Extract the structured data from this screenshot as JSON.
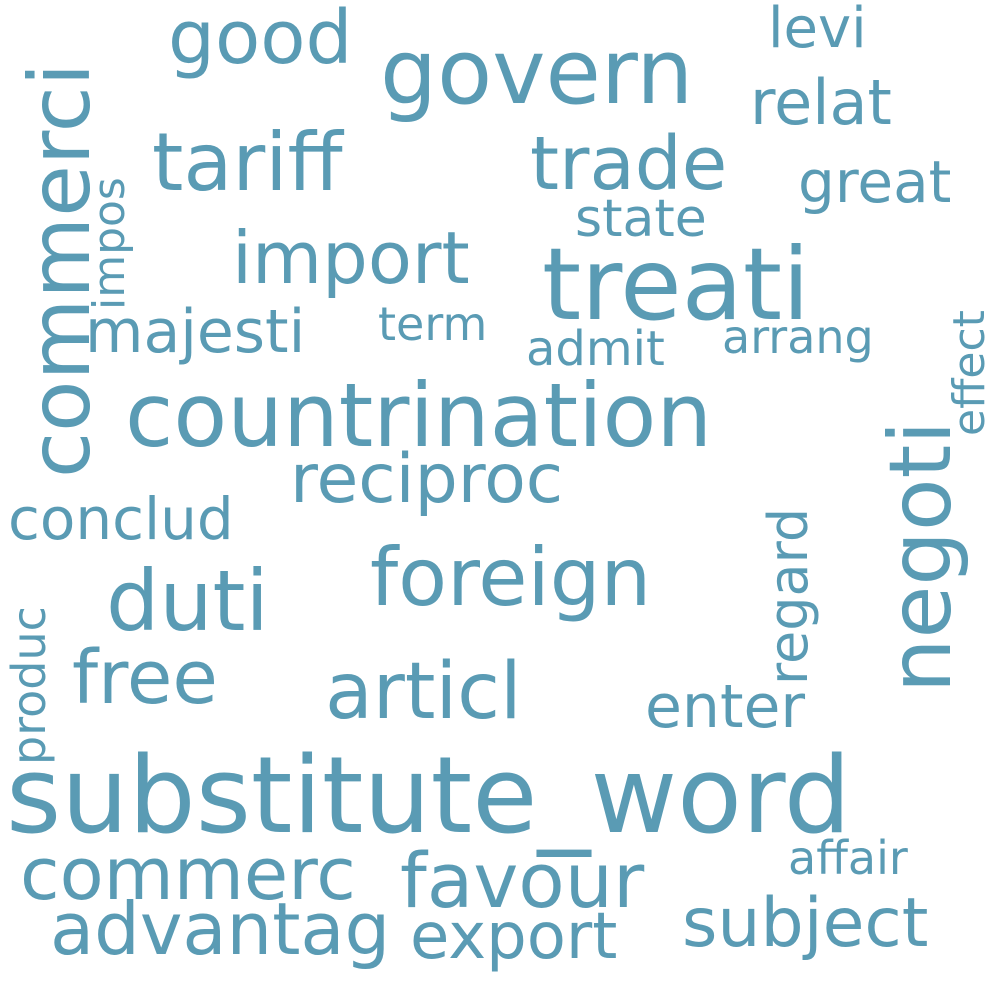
{
  "color": "#5a9bb4",
  "words": [
    "substitute_word",
    "countrination",
    "treati",
    "govern",
    "commerci",
    "tariff",
    "trade",
    "negoti",
    "good",
    "import",
    "foreign",
    "duti",
    "reciproc",
    "articl",
    "free",
    "commerc",
    "favour",
    "advantag",
    "export",
    "subject",
    "majesti",
    "conclud",
    "relat",
    "great",
    "state",
    "levi",
    "impos",
    "term",
    "admit",
    "arrang",
    "effect",
    "regard",
    "enter",
    "produc",
    "affair"
  ]
}
